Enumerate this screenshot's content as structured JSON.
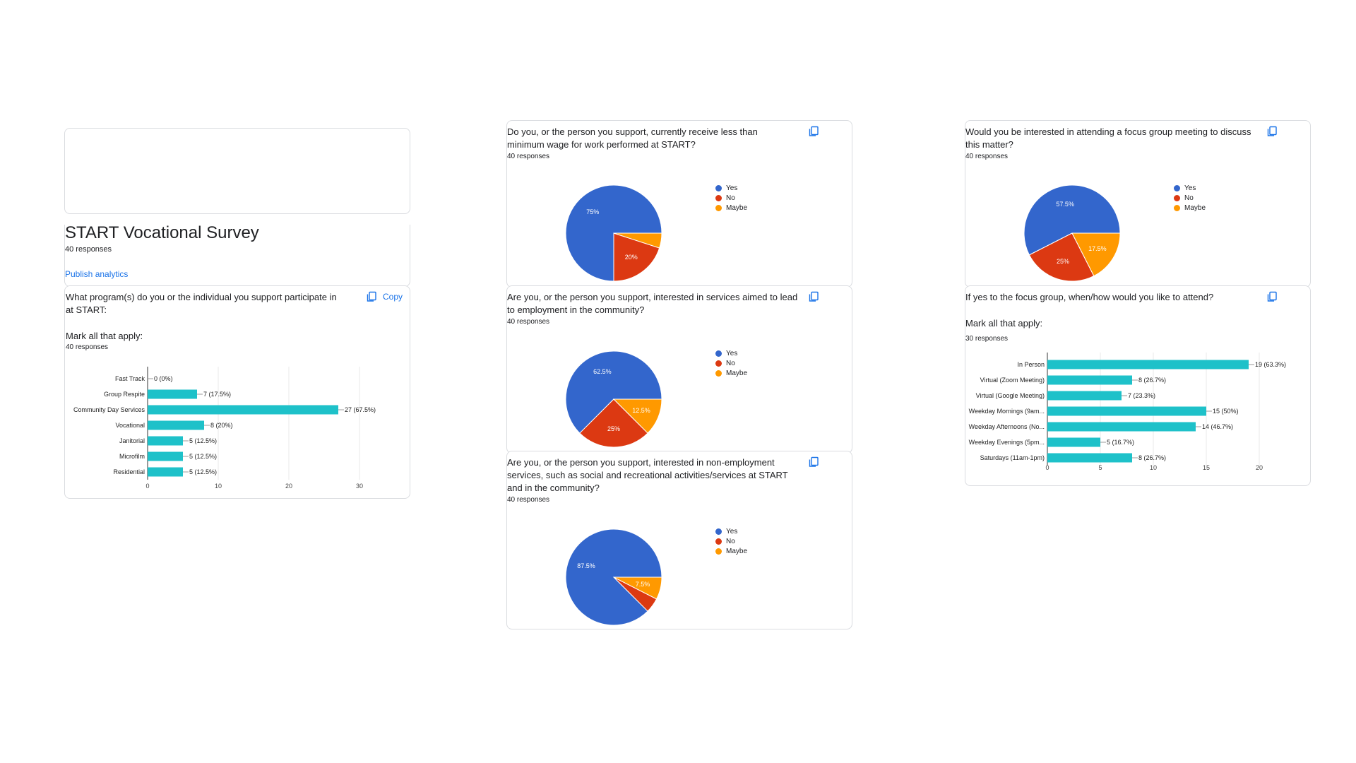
{
  "header": {
    "title": "START Vocational Survey",
    "responses": "40 responses",
    "publish_label": "Publish analytics"
  },
  "colors": {
    "yes": "#3366cc",
    "no": "#dc3912",
    "maybe": "#ff9900",
    "bar": "#1ec1c9",
    "link": "#1a73e8"
  },
  "icons": {
    "copy": "copy-icon"
  },
  "q1": {
    "text": "What program(s) do you or the individual you support participate in at START:",
    "instruction": "Mark all that apply:",
    "responses": "40 responses",
    "copy_label": "Copy"
  },
  "q2": {
    "text": "Do you, or the person you support, currently receive less than minimum wage for work performed at START?",
    "responses": "40 responses"
  },
  "q3": {
    "text": "Are you, or the person you support, interested in services aimed to lead to employment in the community?",
    "responses": "40 responses"
  },
  "q4": {
    "text": "Are you, or the person you support, interested in non-employment services, such as social and recreational activities/services at START and in the community?",
    "responses": "40 responses"
  },
  "q5": {
    "text": "Would you be interested in attending a focus group meeting to discuss this matter?",
    "responses": "40 responses"
  },
  "q6": {
    "text": "If yes to the focus group, when/how would you like to attend?",
    "instruction": "Mark all that apply:",
    "responses": "30 responses"
  },
  "chart_data": [
    {
      "id": "q1",
      "type": "bar",
      "orientation": "horizontal",
      "categories": [
        "Fast Track",
        "Group Respite",
        "Community Day Services",
        "Vocational",
        "Janitorial",
        "Microfilm",
        "Residential"
      ],
      "values": [
        0,
        7,
        27,
        8,
        5,
        5,
        5
      ],
      "labels": [
        "0 (0%)",
        "7 (17.5%)",
        "27 (67.5%)",
        "8 (20%)",
        "5 (12.5%)",
        "5 (12.5%)",
        "5 (12.5%)"
      ],
      "xlim": [
        0,
        30
      ],
      "ticks": [
        "0",
        "10",
        "20",
        "30"
      ],
      "tick_values": [
        0,
        10,
        20,
        30
      ],
      "grid": true
    },
    {
      "id": "q2",
      "type": "pie",
      "labels": [
        "Yes",
        "No",
        "Maybe"
      ],
      "values": [
        75,
        20,
        5
      ],
      "slice_labels": [
        "75%",
        "20%",
        ""
      ],
      "legend": "right"
    },
    {
      "id": "q3",
      "type": "pie",
      "labels": [
        "Yes",
        "No",
        "Maybe"
      ],
      "values": [
        62.5,
        25,
        12.5
      ],
      "slice_labels": [
        "62.5%",
        "25%",
        "12.5%"
      ],
      "legend": "right"
    },
    {
      "id": "q4",
      "type": "pie",
      "labels": [
        "Yes",
        "No",
        "Maybe"
      ],
      "values": [
        87.5,
        5,
        7.5
      ],
      "slice_labels": [
        "87.5%",
        "",
        "7.5%"
      ],
      "legend": "right"
    },
    {
      "id": "q5",
      "type": "pie",
      "labels": [
        "Yes",
        "No",
        "Maybe"
      ],
      "values": [
        57.5,
        25,
        17.5
      ],
      "slice_labels": [
        "57.5%",
        "25%",
        "17.5%"
      ],
      "legend": "right"
    },
    {
      "id": "q6",
      "type": "bar",
      "orientation": "horizontal",
      "categories": [
        "In Person",
        "Virtual (Zoom Meeting)",
        "Virtual (Google Meeting)",
        "Weekday Mornings (9am...",
        "Weekday Afternoons (No...",
        "Weekday Evenings (5pm...",
        "Saturdays (11am-1pm)"
      ],
      "values": [
        19,
        8,
        7,
        15,
        14,
        5,
        8
      ],
      "labels": [
        "19 (63.3%)",
        "8 (26.7%)",
        "7 (23.3%)",
        "15 (50%)",
        "14 (46.7%)",
        "5 (16.7%)",
        "8 (26.7%)"
      ],
      "xlim": [
        0,
        20
      ],
      "ticks": [
        "0",
        "5",
        "10",
        "15",
        "20"
      ],
      "tick_values": [
        0,
        5,
        10,
        15,
        20
      ],
      "grid": true
    }
  ]
}
